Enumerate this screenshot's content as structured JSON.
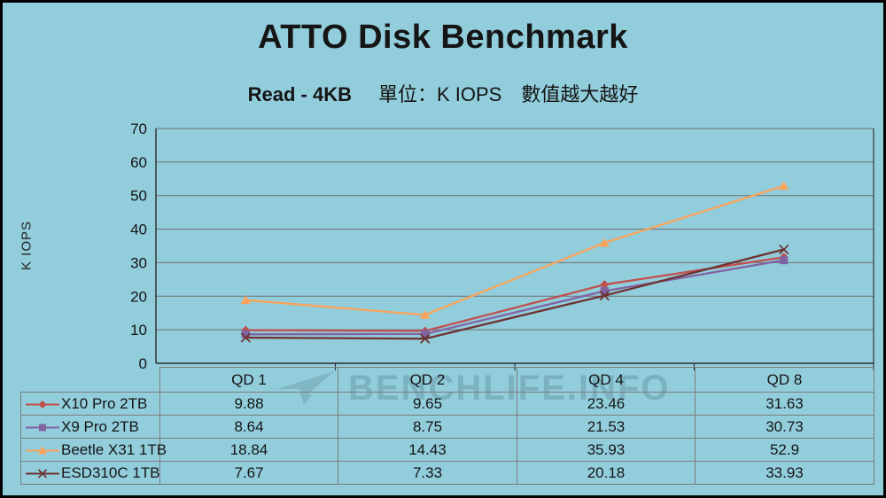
{
  "header": {
    "title": "ATTO Disk Benchmark",
    "subtitle_metric": "Read - 4KB",
    "subtitle_note": "單位：K IOPS　數值越大越好"
  },
  "watermark": {
    "text": "BENCHLIFE.INFO"
  },
  "colors": {
    "background": "#92CDDC",
    "gridline": "#6E6E6E",
    "axis": "#2B2B2B",
    "table_border": "#7D7D7D",
    "text": "#151515"
  },
  "chart_data": {
    "type": "line",
    "title": "ATTO Disk Benchmark",
    "subtitle": "Read - 4KB 單位：K IOPS 數值越大越好",
    "categories": [
      "QD 1",
      "QD 2",
      "QD 4",
      "QD 8"
    ],
    "series": [
      {
        "name": "X10 Pro 2TB",
        "color": "#C0504D",
        "marker": "diamond",
        "values": [
          9.88,
          9.65,
          23.46,
          31.63
        ]
      },
      {
        "name": "X9 Pro 2TB",
        "color": "#8064A2",
        "marker": "square",
        "values": [
          8.64,
          8.75,
          21.53,
          30.73
        ]
      },
      {
        "name": "Beetle X31 1TB",
        "color": "#FAA45B",
        "marker": "triangle",
        "values": [
          18.84,
          14.43,
          35.93,
          52.9
        ]
      },
      {
        "name": "ESD310C 1TB",
        "color": "#6E3230",
        "marker": "x",
        "values": [
          7.67,
          7.33,
          20.18,
          33.93
        ]
      }
    ],
    "xlabel": "",
    "ylabel": "K IOPS",
    "yticks": [
      0,
      10,
      20,
      30,
      40,
      50,
      60,
      70
    ],
    "ylim": [
      0,
      70
    ],
    "grid": true,
    "legend_position": "table-left"
  }
}
